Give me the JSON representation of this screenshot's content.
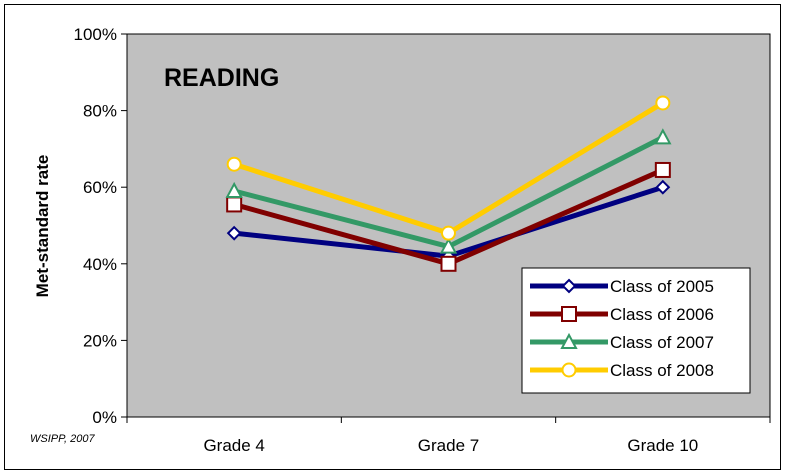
{
  "chart_data": {
    "type": "line",
    "title": "READING",
    "ylabel": "Met-standard rate",
    "xlabel": "",
    "categories": [
      "Grade 4",
      "Grade 7",
      "Grade 10"
    ],
    "ylim": [
      0,
      100
    ],
    "yticks": [
      "0%",
      "20%",
      "40%",
      "60%",
      "80%",
      "100%"
    ],
    "ytick_values": [
      0,
      20,
      40,
      60,
      80,
      100
    ],
    "grid": false,
    "plot_background": "#c0c0c0",
    "legend_position": "bottom-right",
    "series": [
      {
        "name": "Class of 2005",
        "values": [
          48,
          42,
          60
        ],
        "color": "#000080",
        "marker": "diamond"
      },
      {
        "name": "Class of 2006",
        "values": [
          55.5,
          40,
          64.5
        ],
        "color": "#800000",
        "marker": "square"
      },
      {
        "name": "Class of 2007",
        "values": [
          59,
          44.5,
          73
        ],
        "color": "#339966",
        "marker": "triangle"
      },
      {
        "name": "Class of 2008",
        "values": [
          66,
          48,
          82
        ],
        "color": "#ffcc00",
        "marker": "circle"
      }
    ]
  },
  "credit": "WSIPP, 2007"
}
